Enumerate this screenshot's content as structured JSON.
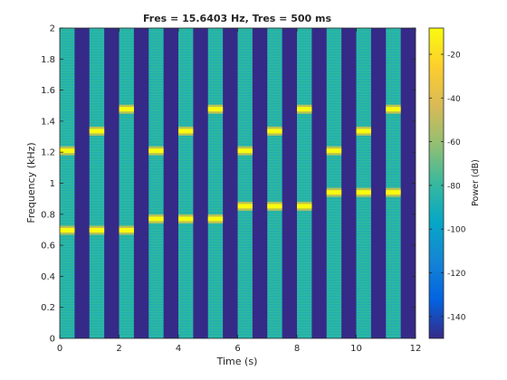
{
  "chart_data": {
    "type": "heatmap",
    "title": "Fres = 15.6403 Hz, Tres = 500 ms",
    "xlabel": "Time (s)",
    "ylabel": "Frequency (kHz)",
    "colorbar_label": "Power (dB)",
    "xlim": [
      0,
      12
    ],
    "ylim": [
      0,
      2
    ],
    "clim": [
      -150,
      -8
    ],
    "xticks": [
      0,
      2,
      4,
      6,
      8,
      10,
      12
    ],
    "yticks": [
      0,
      0.2,
      0.4,
      0.6,
      0.8,
      1,
      1.2,
      1.4,
      1.6,
      1.8,
      2
    ],
    "colorbar_ticks": [
      -20,
      -40,
      -60,
      -80,
      -100,
      -120,
      -140
    ],
    "background_power_db": -148,
    "tone_width_s": 0.5,
    "tones": [
      {
        "t_start": 0.0,
        "t_end": 0.5,
        "freqs_khz": [
          0.697,
          1.209
        ],
        "broadband_db": -72,
        "peak_db": -8
      },
      {
        "t_start": 1.0,
        "t_end": 1.5,
        "freqs_khz": [
          0.697,
          1.336
        ],
        "broadband_db": -72,
        "peak_db": -8
      },
      {
        "t_start": 2.0,
        "t_end": 2.5,
        "freqs_khz": [
          0.697,
          1.477
        ],
        "broadband_db": -72,
        "peak_db": -8
      },
      {
        "t_start": 3.0,
        "t_end": 3.5,
        "freqs_khz": [
          0.77,
          1.209
        ],
        "broadband_db": -72,
        "peak_db": -8
      },
      {
        "t_start": 4.0,
        "t_end": 4.5,
        "freqs_khz": [
          0.77,
          1.336
        ],
        "broadband_db": -72,
        "peak_db": -8
      },
      {
        "t_start": 5.0,
        "t_end": 5.5,
        "freqs_khz": [
          0.77,
          1.477
        ],
        "broadband_db": -72,
        "peak_db": -8
      },
      {
        "t_start": 6.0,
        "t_end": 6.5,
        "freqs_khz": [
          0.852,
          1.209
        ],
        "broadband_db": -72,
        "peak_db": -8
      },
      {
        "t_start": 7.0,
        "t_end": 7.5,
        "freqs_khz": [
          0.852,
          1.336
        ],
        "broadband_db": -72,
        "peak_db": -8
      },
      {
        "t_start": 8.0,
        "t_end": 8.5,
        "freqs_khz": [
          0.852,
          1.477
        ],
        "broadband_db": -72,
        "peak_db": -8
      },
      {
        "t_start": 9.0,
        "t_end": 9.5,
        "freqs_khz": [
          0.941,
          1.209
        ],
        "broadband_db": -72,
        "peak_db": -8
      },
      {
        "t_start": 10.0,
        "t_end": 10.5,
        "freqs_khz": [
          0.941,
          1.336
        ],
        "broadband_db": -72,
        "peak_db": -8
      },
      {
        "t_start": 11.0,
        "t_end": 11.5,
        "freqs_khz": [
          0.941,
          1.477
        ],
        "broadband_db": -72,
        "peak_db": -8
      }
    ],
    "colormap": "parula",
    "grid": false
  }
}
